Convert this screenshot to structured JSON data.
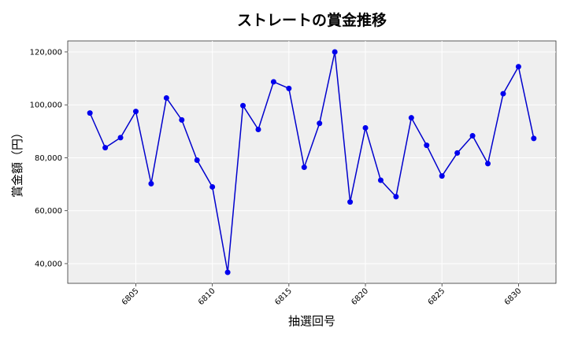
{
  "chart_data": {
    "type": "line",
    "title": "ストレートの賞金推移",
    "xlabel": "抽選回号",
    "ylabel": "賞金額（円）",
    "x": [
      6802,
      6803,
      6804,
      6805,
      6806,
      6807,
      6808,
      6809,
      6810,
      6811,
      6812,
      6813,
      6814,
      6815,
      6816,
      6817,
      6818,
      6819,
      6820,
      6821,
      6822,
      6823,
      6824,
      6825,
      6826,
      6827,
      6828,
      6829,
      6830,
      6831
    ],
    "values": [
      96900,
      83800,
      87600,
      97500,
      70200,
      102600,
      94300,
      79100,
      69000,
      36700,
      99700,
      90700,
      108700,
      106200,
      76400,
      93000,
      120000,
      63300,
      91300,
      71500,
      65300,
      95100,
      84700,
      73100,
      81800,
      88300,
      77800,
      104200,
      114400,
      87300
    ],
    "xticks": [
      6805,
      6810,
      6815,
      6820,
      6825,
      6830
    ],
    "xtick_labels": [
      "6805",
      "6810",
      "6815",
      "6820",
      "6825",
      "6830"
    ],
    "yticks": [
      40000,
      60000,
      80000,
      100000,
      120000
    ],
    "ytick_labels": [
      "40,000",
      "60,000",
      "80,000",
      "100,000",
      "120,000"
    ],
    "xlim": [
      6800.55,
      6832.45
    ],
    "ylim": [
      32550,
      124150
    ],
    "grid": true,
    "colors": {
      "line": "#0000cd",
      "marker": "#0000ee",
      "plot_bg": "#efefef",
      "grid": "#ffffff"
    }
  }
}
